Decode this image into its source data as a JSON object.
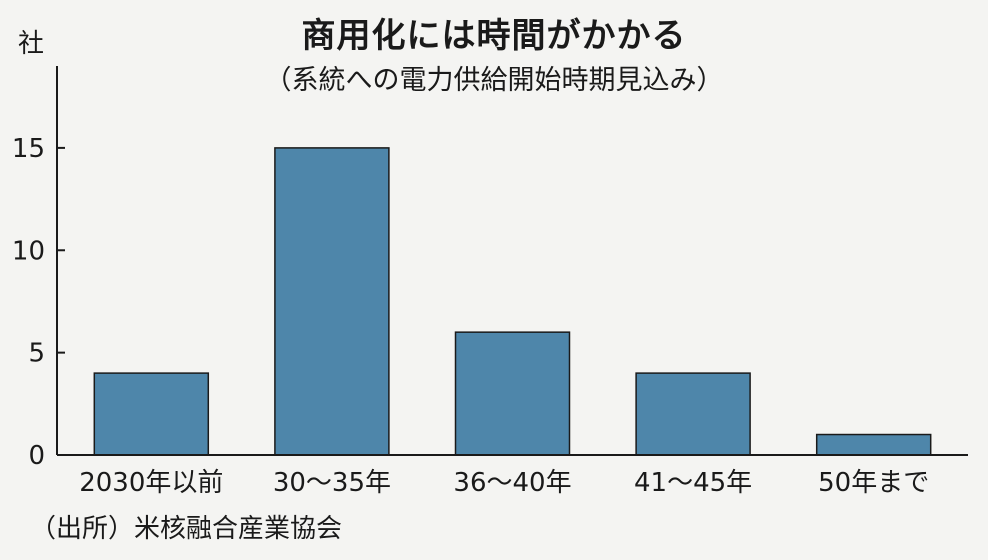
{
  "title": "商用化には時間がかかる",
  "subtitle": "（系統への電力供給開始時期見込み）",
  "source": "（出所）米核融合産業協会",
  "chart_data": {
    "type": "bar",
    "categories": [
      "2030年以前",
      "30～35年",
      "36～40年",
      "41～45年",
      "50年まで"
    ],
    "values": [
      4,
      15,
      6,
      4,
      1
    ],
    "ylabel": "社",
    "ylim": [
      0,
      19
    ],
    "yticks": [
      0,
      5,
      10,
      15
    ],
    "bar_color": "#4e86aa",
    "grid": false
  }
}
